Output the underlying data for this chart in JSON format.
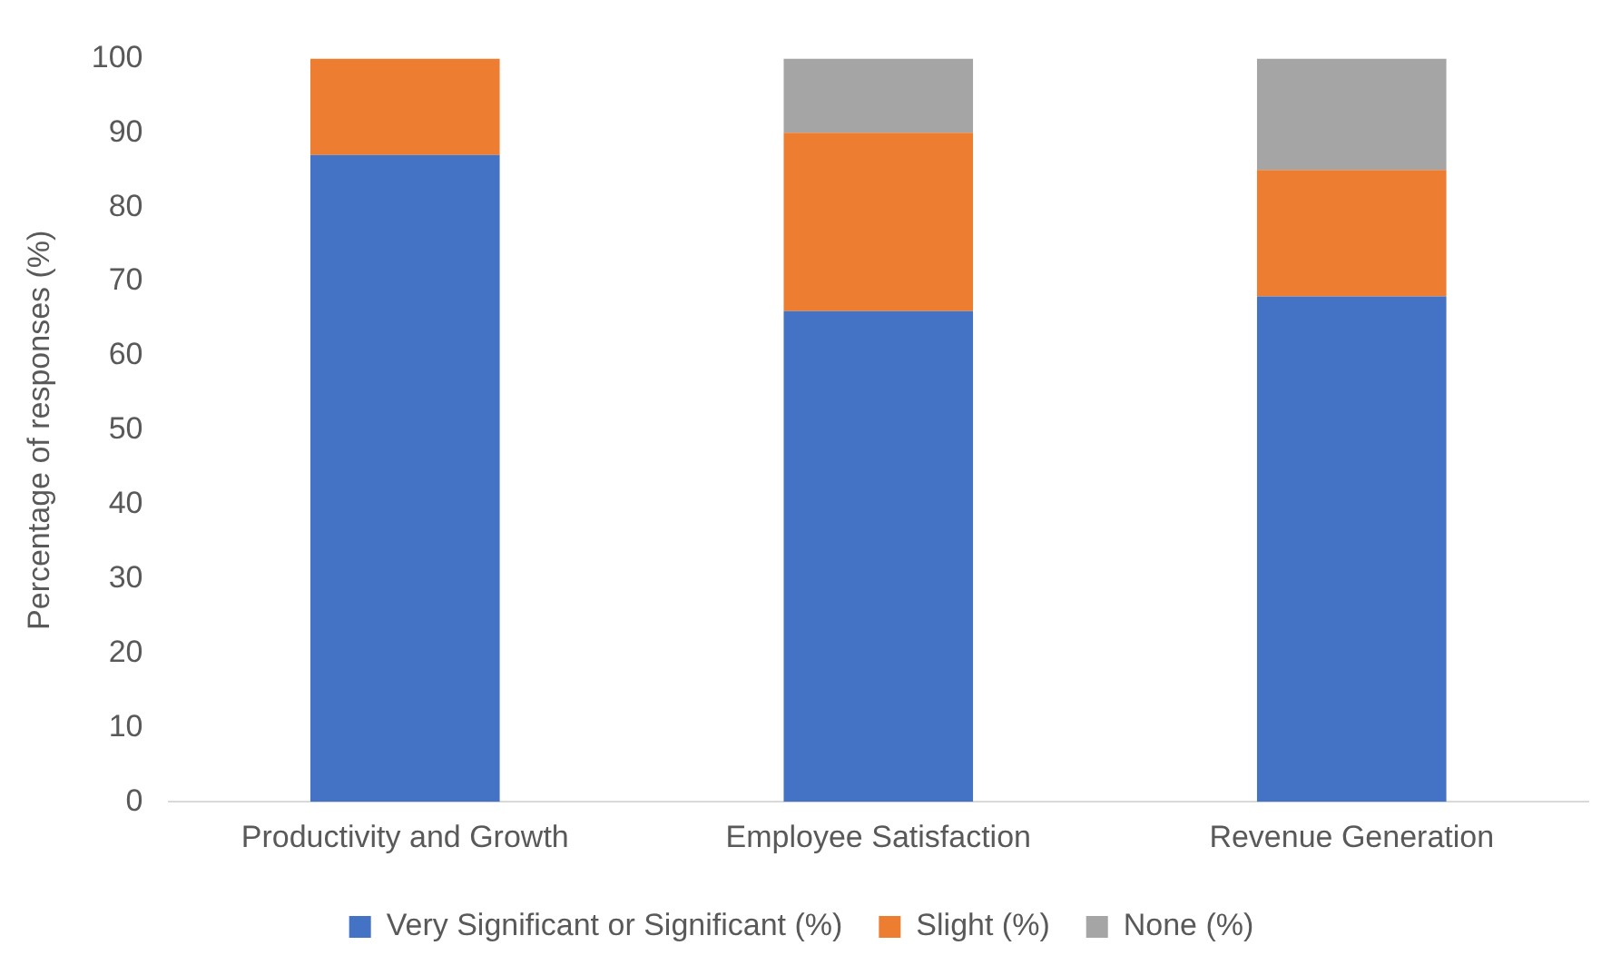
{
  "chart_data": {
    "type": "bar",
    "stacked": true,
    "ylabel": "Percentage of responses (%)",
    "categories": [
      "Productivity and Growth",
      "Employee Satisfaction",
      "Revenue Generation"
    ],
    "series": [
      {
        "name": "Very Significant or Significant (%)",
        "color": "#4472c4",
        "values": [
          87,
          66,
          68
        ]
      },
      {
        "name": "Slight (%)",
        "color": "#ed7d31",
        "values": [
          13,
          24,
          17
        ]
      },
      {
        "name": "None (%)",
        "color": "#a5a5a5",
        "values": [
          0,
          10,
          15
        ]
      }
    ],
    "ylim": [
      0,
      100
    ],
    "yticks": [
      0,
      10,
      20,
      30,
      40,
      50,
      60,
      70,
      80,
      90,
      100
    ],
    "grid": false,
    "legend": "bottom"
  }
}
